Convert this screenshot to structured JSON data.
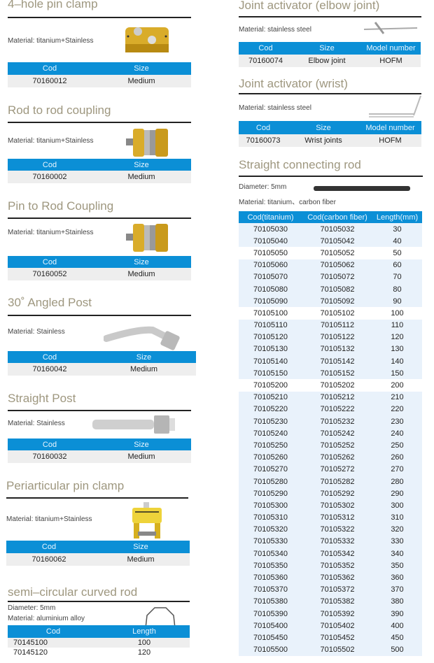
{
  "left": [
    {
      "title": "4–hole pin clamp",
      "lines": [
        "Material:  titanium+Stainless"
      ],
      "image": "gold-clamp",
      "headers": [
        "Cod",
        "Size"
      ],
      "rows": [
        [
          "70160012",
          "Medium"
        ]
      ]
    },
    {
      "title": "Rod to rod coupling",
      "lines": [
        "Material:  titanium+Stainless"
      ],
      "image": "gold-coupling",
      "headers": [
        "Cod",
        "Size"
      ],
      "rows": [
        [
          "70160002",
          "Medium"
        ]
      ]
    },
    {
      "title": "Pin to Rod Coupling",
      "lines": [
        "Material:  titanium+Stainless"
      ],
      "image": "gold-coupling",
      "headers": [
        "Cod",
        "Size"
      ],
      "rows": [
        [
          "70160052",
          "Medium"
        ]
      ]
    },
    {
      "title": "30˚ Angled Post",
      "lines": [
        "Material:  Stainless"
      ],
      "image": "angled-post",
      "headers": [
        "Cod",
        "Size"
      ],
      "rows": [
        [
          "70160042",
          "Medium"
        ]
      ]
    },
    {
      "title": "Straight Post",
      "lines": [
        "Material:  Stainless"
      ],
      "image": "straight-post",
      "headers": [
        "Cod",
        "Size"
      ],
      "rows": [
        [
          "70160032",
          "Medium"
        ]
      ]
    },
    {
      "title": "Periarticular pin clamp",
      "lines": [
        "Material:  titanium+Stainless"
      ],
      "image": "periarticular-clamp",
      "headers": [
        "Cod",
        "Size"
      ],
      "rows": [
        [
          "70160062",
          "Medium"
        ]
      ]
    },
    {
      "title": "semi–circular curved rod",
      "lines": [
        "Diameter:  5mm",
        "Material:  aluminium alloy"
      ],
      "image": "curved-rod",
      "headers": [
        "Cod",
        "Length"
      ],
      "rows": [
        [
          "70145100",
          "100"
        ],
        [
          "70145120",
          "120"
        ]
      ]
    }
  ],
  "right": [
    {
      "title": "Joint activator (elbow joint)",
      "lines": [
        "Material:  stainless steel"
      ],
      "image": "elbow-activator",
      "headers": [
        "Cod",
        "Size",
        "Model number"
      ],
      "rows": [
        [
          "70160074",
          "Elbow joint",
          "HOFM"
        ]
      ]
    },
    {
      "title": "Joint activator (wrist)",
      "lines": [
        "Material:  stainless steel"
      ],
      "image": "wrist-activator",
      "headers": [
        "Cod",
        "Size",
        "Model number"
      ],
      "rows": [
        [
          "70160073",
          "Wrist joints",
          "HOFM"
        ]
      ]
    },
    {
      "title": "Straight connecting rod",
      "lines": [
        "Diameter:  5mm",
        "Material:  titanium、carbon fiber"
      ],
      "image": "straight-rod",
      "headers": [
        "Cod(titanium)",
        "Cod(carbon fiber)",
        "Length(mm)"
      ],
      "rows": [
        [
          "70105030",
          "70105032",
          "30"
        ],
        [
          "70105040",
          "70105042",
          "40"
        ],
        [
          "70105050",
          "70105052",
          "50"
        ],
        [
          "70105060",
          "70105062",
          "60"
        ],
        [
          "70105070",
          "70105072",
          "70"
        ],
        [
          "70105080",
          "70105082",
          "80"
        ],
        [
          "70105090",
          "70105092",
          "90"
        ],
        [
          "70105100",
          "70105102",
          "100"
        ],
        [
          "70105110",
          "70105112",
          "110"
        ],
        [
          "70105120",
          "70105122",
          "120"
        ],
        [
          "70105130",
          "70105132",
          "130"
        ],
        [
          "70105140",
          "70105142",
          "140"
        ],
        [
          "70105150",
          "70105152",
          "150"
        ],
        [
          "70105200",
          "70105202",
          "200"
        ],
        [
          "70105210",
          "70105212",
          "210"
        ],
        [
          "70105220",
          "70105222",
          "220"
        ],
        [
          "70105230",
          "70105232",
          "230"
        ],
        [
          "70105240",
          "70105242",
          "240"
        ],
        [
          "70105250",
          "70105252",
          "250"
        ],
        [
          "70105260",
          "70105262",
          "260"
        ],
        [
          "70105270",
          "70105272",
          "270"
        ],
        [
          "70105280",
          "70105282",
          "280"
        ],
        [
          "70105290",
          "70105292",
          "290"
        ],
        [
          "70105300",
          "70105302",
          "300"
        ],
        [
          "70105310",
          "70105312",
          "310"
        ],
        [
          "70105320",
          "70105322",
          "320"
        ],
        [
          "70105330",
          "70105332",
          "330"
        ],
        [
          "70105340",
          "70105342",
          "340"
        ],
        [
          "70105350",
          "70105352",
          "350"
        ],
        [
          "70105360",
          "70105362",
          "360"
        ],
        [
          "70105370",
          "70105372",
          "370"
        ],
        [
          "70105380",
          "70105382",
          "380"
        ],
        [
          "70105390",
          "70105392",
          "390"
        ],
        [
          "70105400",
          "70105402",
          "400"
        ],
        [
          "70105450",
          "70105452",
          "450"
        ],
        [
          "70105500",
          "70105502",
          "500"
        ]
      ]
    }
  ],
  "colors": {
    "header": "#0b8fd6",
    "title": "#9e977f",
    "row": "#eeeeee",
    "row_alt": "#e9f2fb"
  }
}
